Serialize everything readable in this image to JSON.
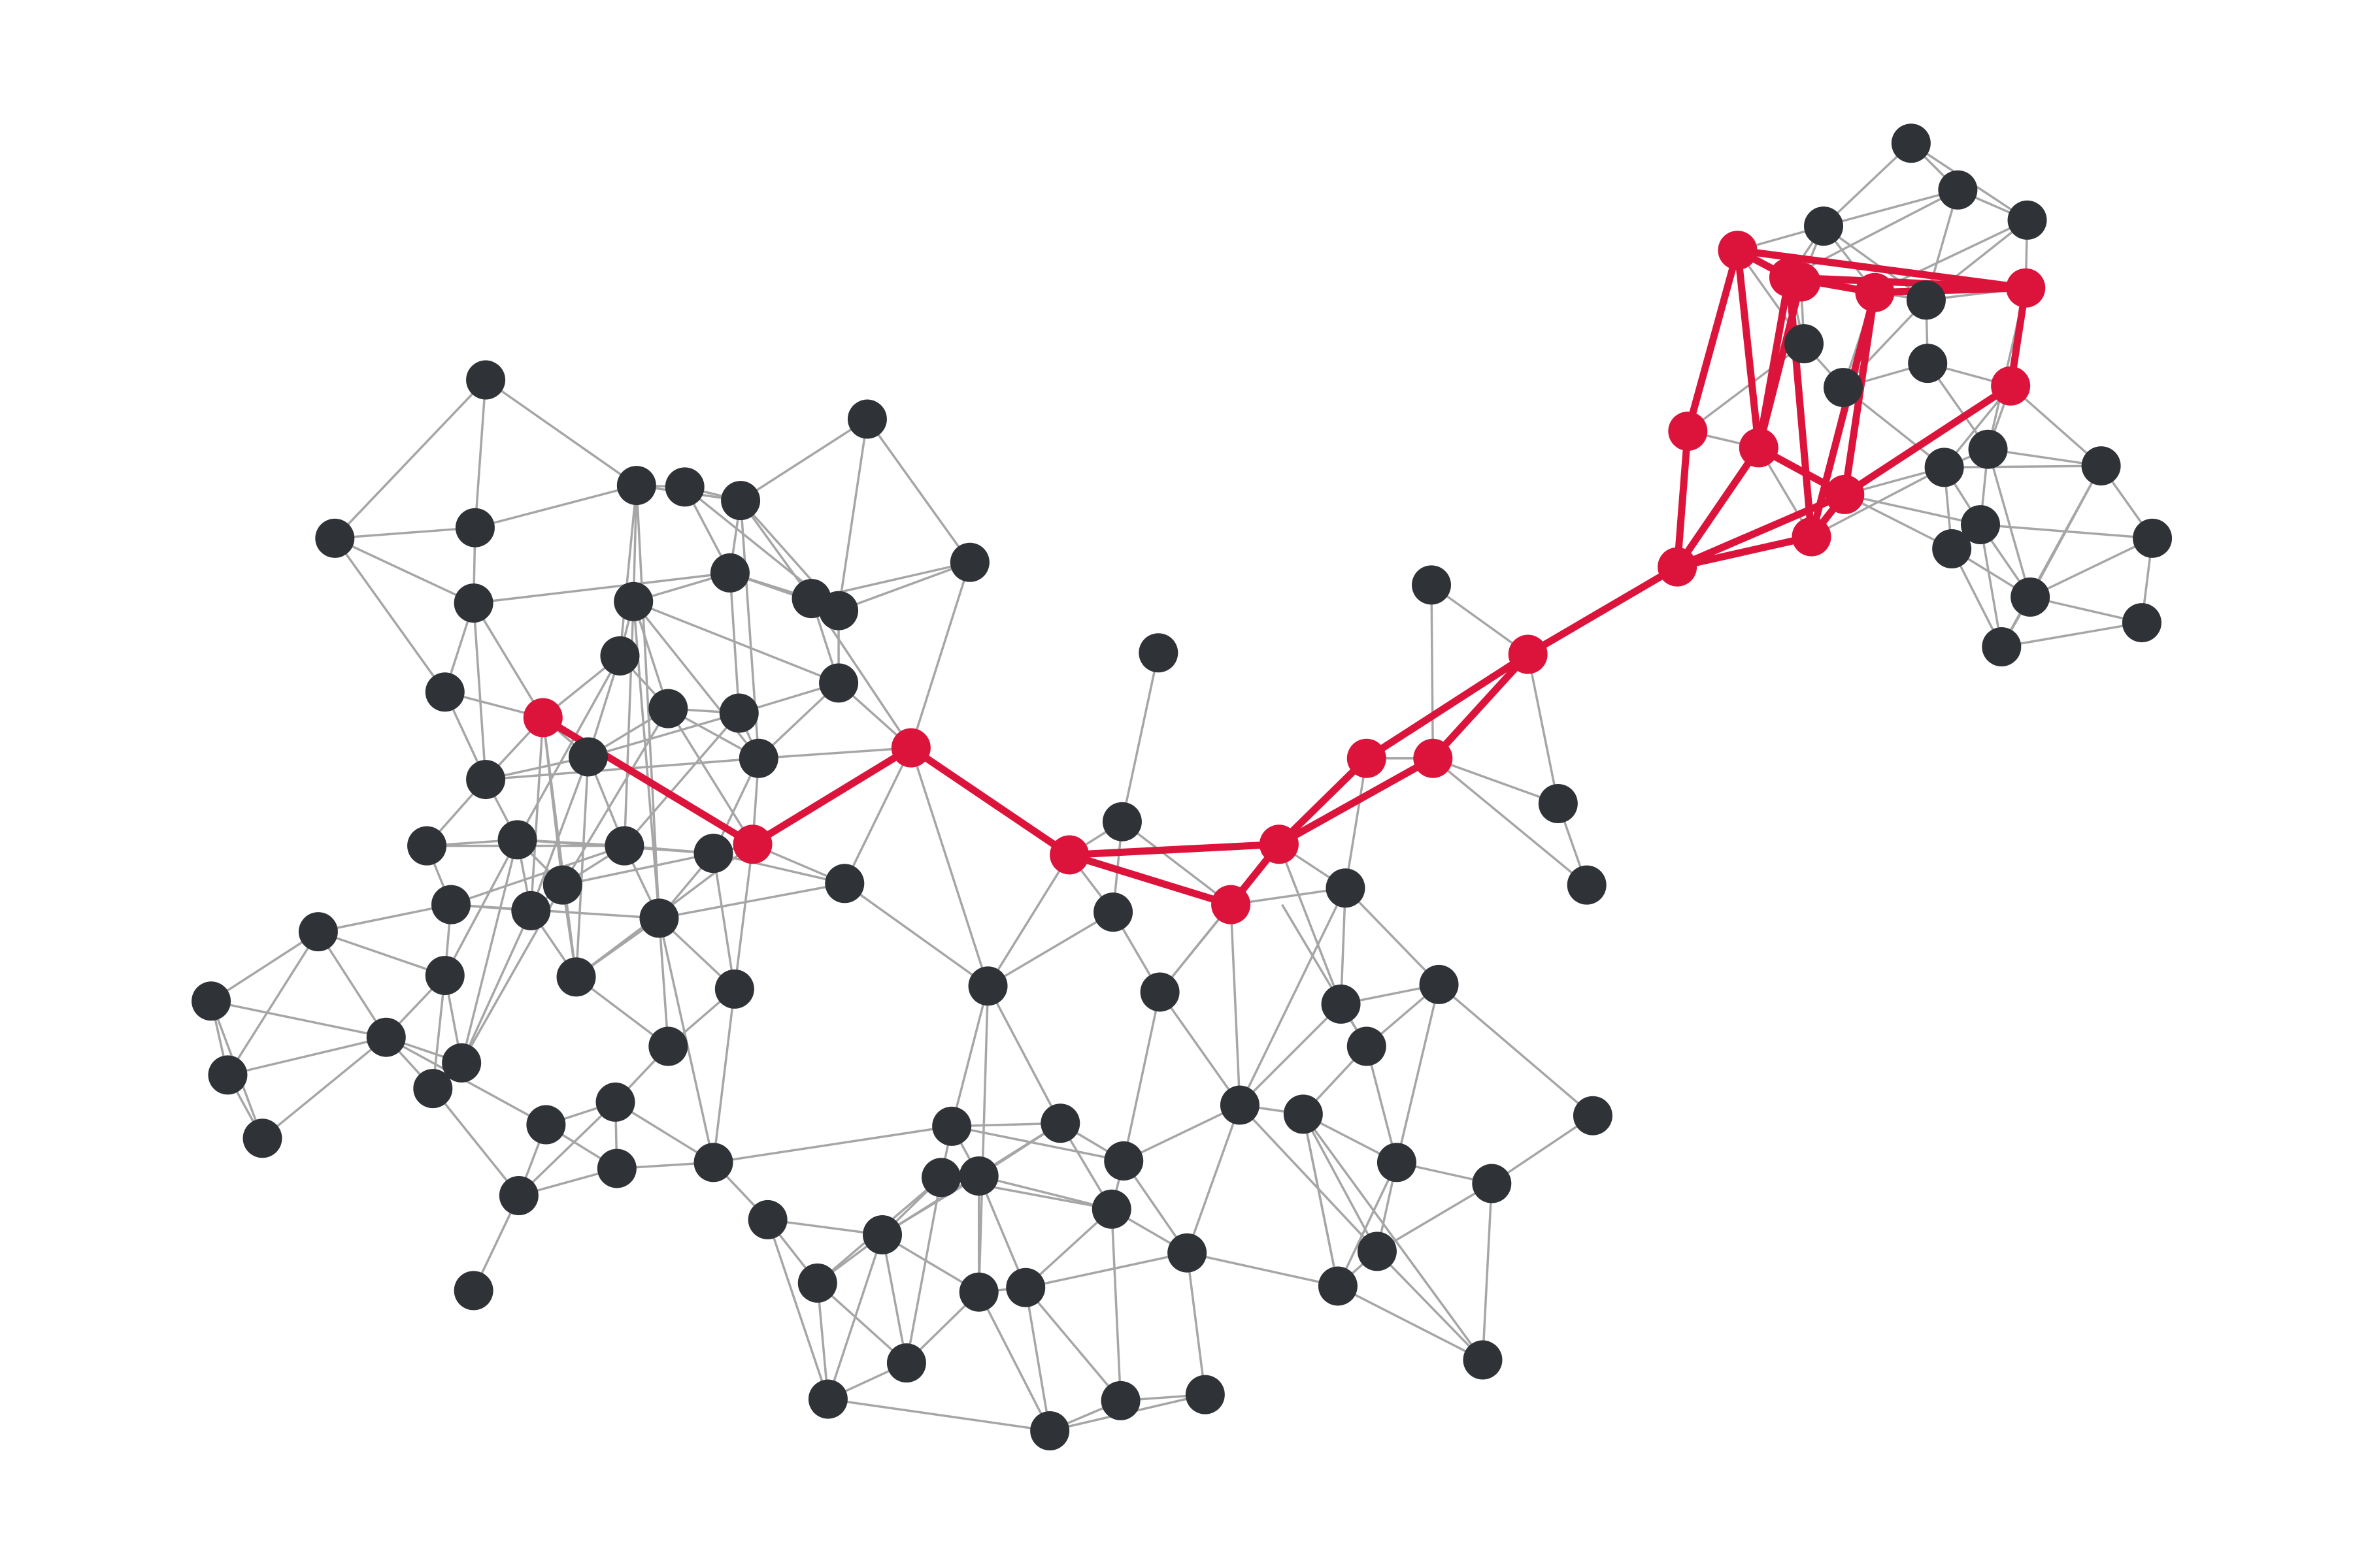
{
  "colors": {
    "background": "#ffffff",
    "node": "#2f3237",
    "edge": "#a6a6a6",
    "highlight": "#dc143c"
  },
  "graph": {
    "node_count": 154,
    "highlighted_node_count": 20,
    "highlighted_edge_count": 31
  }
}
